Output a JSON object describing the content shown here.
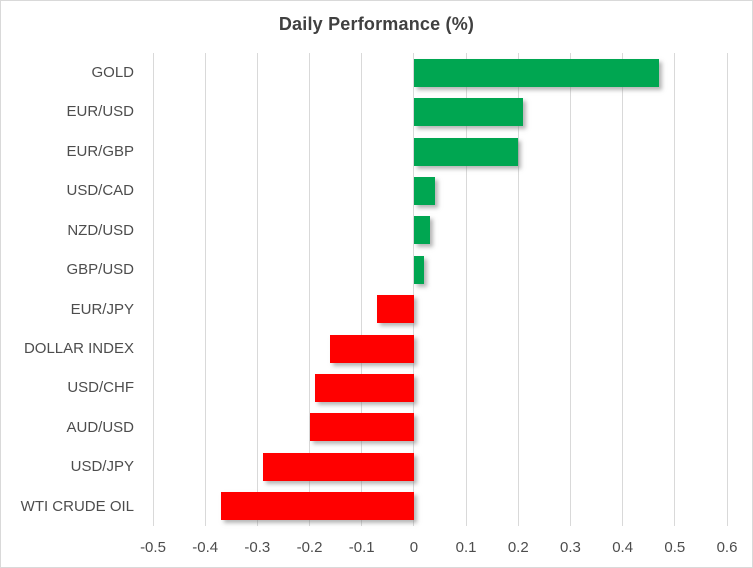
{
  "window": {
    "background": "#FFFFFF",
    "border_color": "#D9D9D9"
  },
  "chart_data": {
    "type": "bar",
    "orientation": "horizontal",
    "title": "Daily Performance (%)",
    "categories": [
      "GOLD",
      "EUR/USD",
      "EUR/GBP",
      "USD/CAD",
      "NZD/USD",
      "GBP/USD",
      "EUR/JPY",
      "DOLLAR INDEX",
      "USD/CHF",
      "AUD/USD",
      "USD/JPY",
      "WTI CRUDE OIL"
    ],
    "values": [
      0.47,
      0.21,
      0.2,
      0.04,
      0.03,
      0.02,
      -0.07,
      -0.16,
      -0.19,
      -0.2,
      -0.29,
      -0.37
    ],
    "xlabel": "",
    "ylabel": "",
    "xlim": [
      -0.5,
      0.6
    ],
    "x_tick_labels": [
      "-0.5",
      "-0.4",
      "-0.3",
      "-0.2",
      "-0.1",
      "0",
      "0.1",
      "0.2",
      "0.3",
      "0.4",
      "0.5",
      "0.6"
    ],
    "grid": "vertical-only",
    "legend": "none",
    "bar_effect": "drop-shadow",
    "colors": {
      "positive": "#00A651",
      "negative": "#FF0000",
      "gridline": "#D9D9D9",
      "title_text": "#404040",
      "axis_text": "#4D4D4D"
    }
  }
}
